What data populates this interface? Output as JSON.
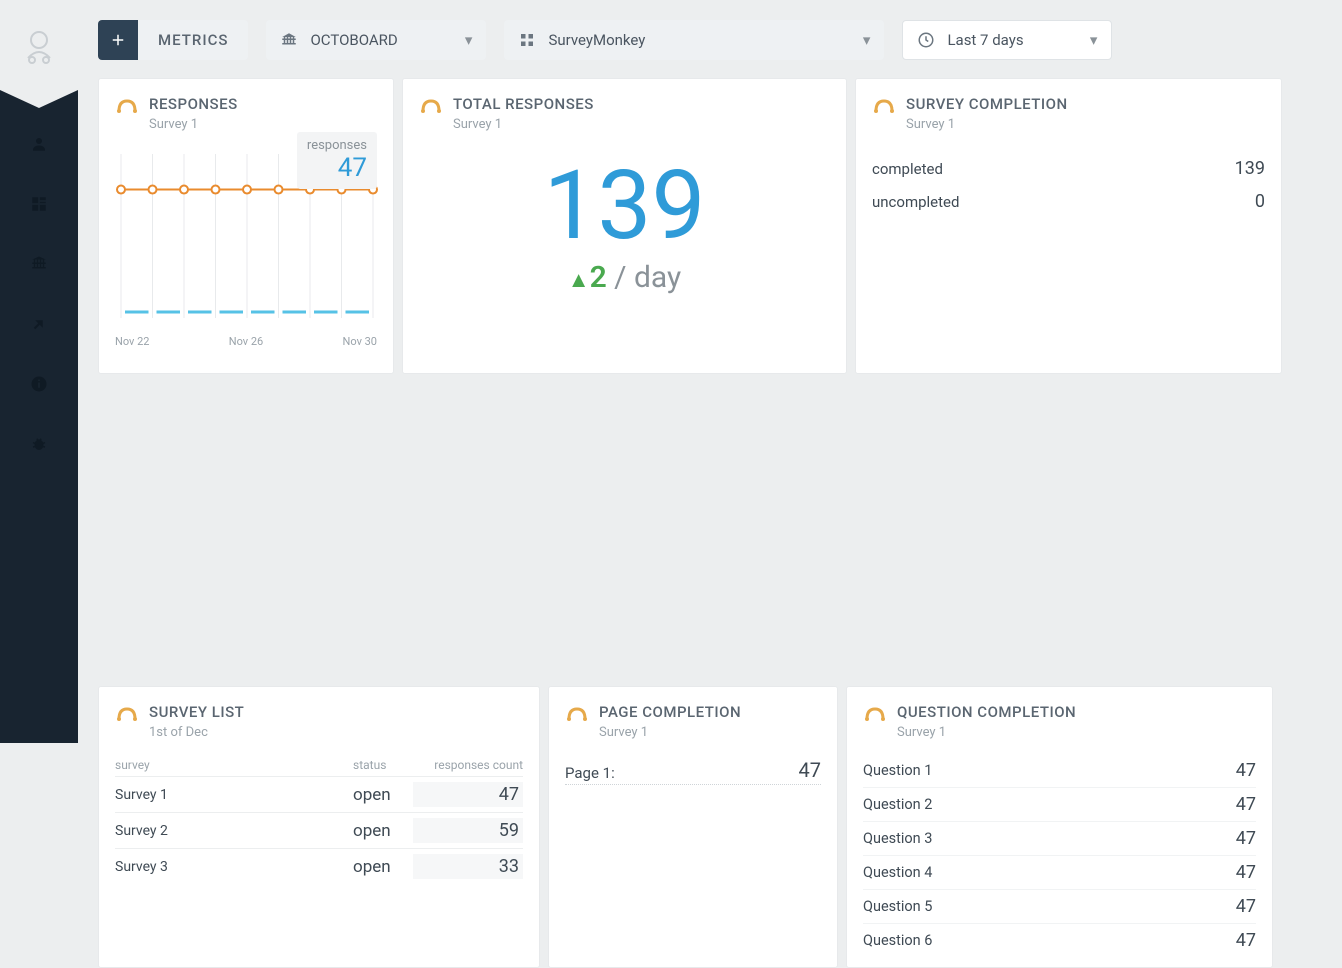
{
  "toolbar": {
    "metrics_label": "METRICS",
    "workspace": "OCTOBOARD",
    "source": "SurveyMonkey",
    "daterange": "Last 7 days"
  },
  "sidebar": {
    "items": [
      "account",
      "dashboards",
      "org",
      "integrations",
      "info",
      "debug"
    ]
  },
  "responses_card": {
    "title": "RESPONSES",
    "subtitle": "Survey 1",
    "tooltip_label": "responses",
    "tooltip_value": "47",
    "type": "line",
    "series_color": "#e98b2e",
    "marker_color": "#ffffff",
    "marker_border": "#e98b2e",
    "lower_series_color": "#56c2e6",
    "grid_color": "#e8eaec",
    "x_labels": [
      "Nov 22",
      "Nov 26",
      "Nov 30"
    ],
    "points_y": [
      47,
      47,
      47,
      47,
      47,
      47,
      47,
      47,
      47
    ],
    "ylim": [
      0,
      60
    ]
  },
  "total_card": {
    "title": "TOTAL RESPONSES",
    "subtitle": "Survey 1",
    "value": "139",
    "delta": "2",
    "unit": "/ day",
    "value_color": "#2f9bd8",
    "delta_color": "#4aa94f"
  },
  "completion_card": {
    "title": "SURVEY COMPLETION",
    "subtitle": "Survey 1",
    "rows": [
      {
        "label": "completed",
        "value": "139"
      },
      {
        "label": "uncompleted",
        "value": "0"
      }
    ]
  },
  "survey_list_card": {
    "title": "SURVEY LIST",
    "subtitle": "1st of Dec",
    "columns": [
      "survey",
      "status",
      "responses count"
    ],
    "rows": [
      {
        "survey": "Survey 1",
        "status": "open",
        "count": "47"
      },
      {
        "survey": "Survey 2",
        "status": "open",
        "count": "59"
      },
      {
        "survey": "Survey 3",
        "status": "open",
        "count": "33"
      }
    ]
  },
  "page_completion_card": {
    "title": "PAGE COMPLETION",
    "subtitle": "Survey 1",
    "rows": [
      {
        "label": "Page 1:",
        "value": "47"
      }
    ]
  },
  "question_completion_card": {
    "title": "QUESTION COMPLETION",
    "subtitle": "Survey 1",
    "rows": [
      {
        "label": "Question 1",
        "value": "47"
      },
      {
        "label": "Question 2",
        "value": "47"
      },
      {
        "label": "Question 3",
        "value": "47"
      },
      {
        "label": "Question 4",
        "value": "47"
      },
      {
        "label": "Question 5",
        "value": "47"
      },
      {
        "label": "Question 6",
        "value": "47"
      }
    ]
  }
}
